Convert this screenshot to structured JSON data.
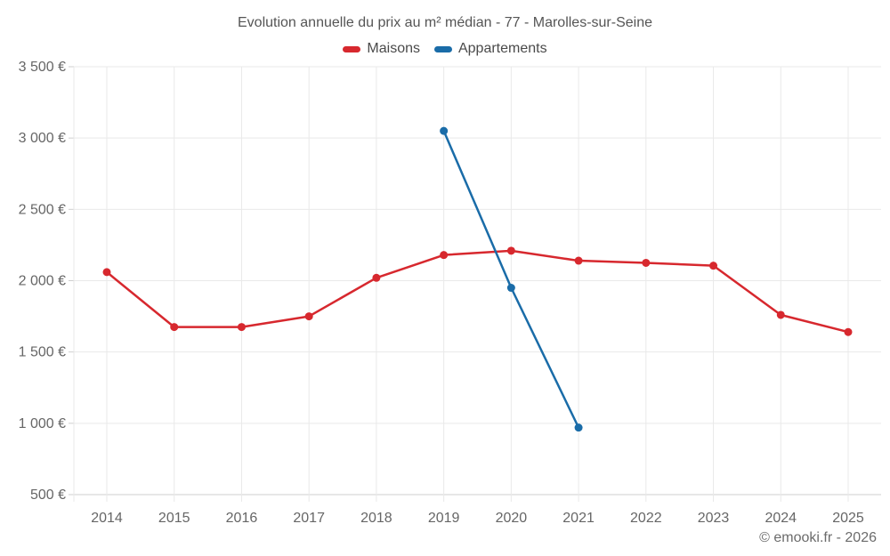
{
  "footer": "© emooki.fr - 2026",
  "colors": {
    "background": "#ffffff",
    "grid": "#e9e9e9",
    "axis_line": "#cfcfcf",
    "tick_text": "#666666",
    "title_text": "#555555",
    "legend_text": "#4a4a4a"
  },
  "chart_data": {
    "type": "line",
    "title": "Evolution annuelle du prix au m² médian - 77 - Marolles-sur-Seine",
    "xlabel": "",
    "ylabel": "",
    "categories": [
      "2014",
      "2015",
      "2016",
      "2017",
      "2018",
      "2019",
      "2020",
      "2021",
      "2022",
      "2023",
      "2024",
      "2025"
    ],
    "series": [
      {
        "name": "Maisons",
        "color": "#d7282e",
        "values": [
          2060,
          1675,
          1675,
          1750,
          2020,
          2180,
          2210,
          2140,
          2125,
          2105,
          1760,
          1640
        ]
      },
      {
        "name": "Appartements",
        "color": "#1a6ca8",
        "values": [
          null,
          null,
          null,
          null,
          null,
          3050,
          1950,
          970,
          null,
          null,
          null,
          null
        ]
      }
    ],
    "ylim": [
      500,
      3500
    ],
    "yticks": [
      {
        "value": 500,
        "label": "500 €"
      },
      {
        "value": 1000,
        "label": "1 000 €"
      },
      {
        "value": 1500,
        "label": "1 500 €"
      },
      {
        "value": 2000,
        "label": "2 000 €"
      },
      {
        "value": 2500,
        "label": "2 500 €"
      },
      {
        "value": 3000,
        "label": "3 000 €"
      },
      {
        "value": 3500,
        "label": "3 500 €"
      }
    ],
    "grid": true,
    "legend_position": "top"
  }
}
